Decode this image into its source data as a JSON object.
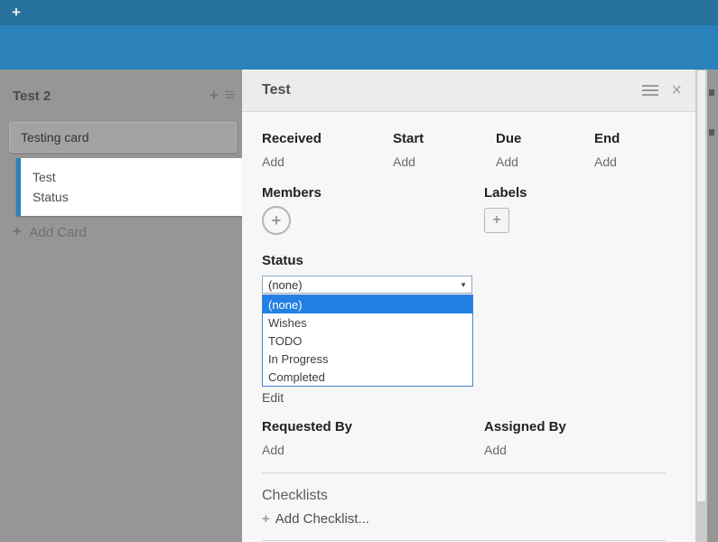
{
  "colors": {
    "topbar_blue": "#27719f",
    "subbar_blue": "#2b82bb",
    "board_gray": "#969696",
    "highlight_blue": "#2180e2",
    "panel_bg": "#f7f7f7",
    "panel_header_bg": "#ececec"
  },
  "icons": {
    "plus": "+",
    "menu": "≡",
    "close": "×",
    "dropdown_arrow": "▼"
  },
  "list": {
    "title": "Test 2",
    "cards": {
      "minicard_title": "Testing card",
      "selected_line1": "Test",
      "selected_line2": "Status"
    },
    "add_card_label": "Add Card"
  },
  "panel": {
    "title": "Test",
    "dates": [
      {
        "label": "Received",
        "action": "Add"
      },
      {
        "label": "Start",
        "action": "Add"
      },
      {
        "label": "Due",
        "action": "Add"
      },
      {
        "label": "End",
        "action": "Add"
      }
    ],
    "members": {
      "label": "Members"
    },
    "labels": {
      "label": "Labels"
    },
    "status": {
      "label": "Status",
      "selected": "(none)",
      "options": [
        "(none)",
        "Wishes",
        "TODO",
        "In Progress",
        "Completed"
      ],
      "edit_label": "Edit"
    },
    "requested_by": {
      "label": "Requested By",
      "action": "Add"
    },
    "assigned_by": {
      "label": "Assigned By",
      "action": "Add"
    },
    "checklists": {
      "label": "Checklists",
      "add_label": "Add Checklist..."
    }
  }
}
